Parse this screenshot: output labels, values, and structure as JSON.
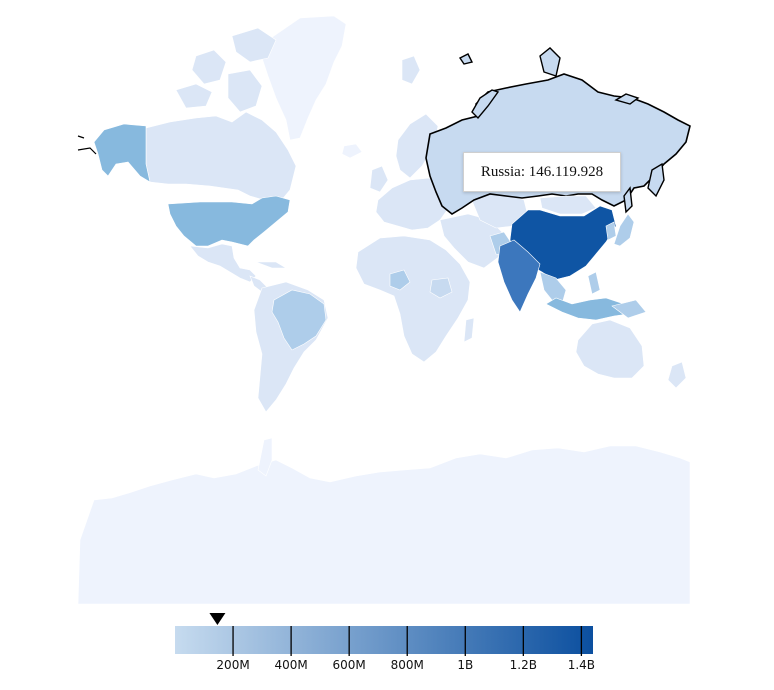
{
  "colors": {
    "ocean": "#ffffff",
    "very_low": "#eef3fd",
    "low": "#dbe6f6",
    "low_mid": "#c7daf0",
    "mid": "#aecdea",
    "usa": "#87b9de",
    "india": "#3c77bd",
    "china": "#0f55a4",
    "border": "#ffffff",
    "hover_outline": "#000000"
  },
  "tooltip": {
    "country": "Russia",
    "text": "Russia: 146.119.928"
  },
  "legend": {
    "scale": "population",
    "min": 0,
    "max": 1440000000,
    "indicator_value": 146119928,
    "ticks": [
      {
        "value": 200000000,
        "label": "200M"
      },
      {
        "value": 400000000,
        "label": "400M"
      },
      {
        "value": 600000000,
        "label": "600M"
      },
      {
        "value": 800000000,
        "label": "800M"
      },
      {
        "value": 1000000000,
        "label": "1B"
      },
      {
        "value": 1200000000,
        "label": "1.2B"
      },
      {
        "value": 1400000000,
        "label": "1.4B"
      }
    ],
    "gradient_start": "#c6dbef",
    "gradient_end": "#0b4f9f"
  }
}
